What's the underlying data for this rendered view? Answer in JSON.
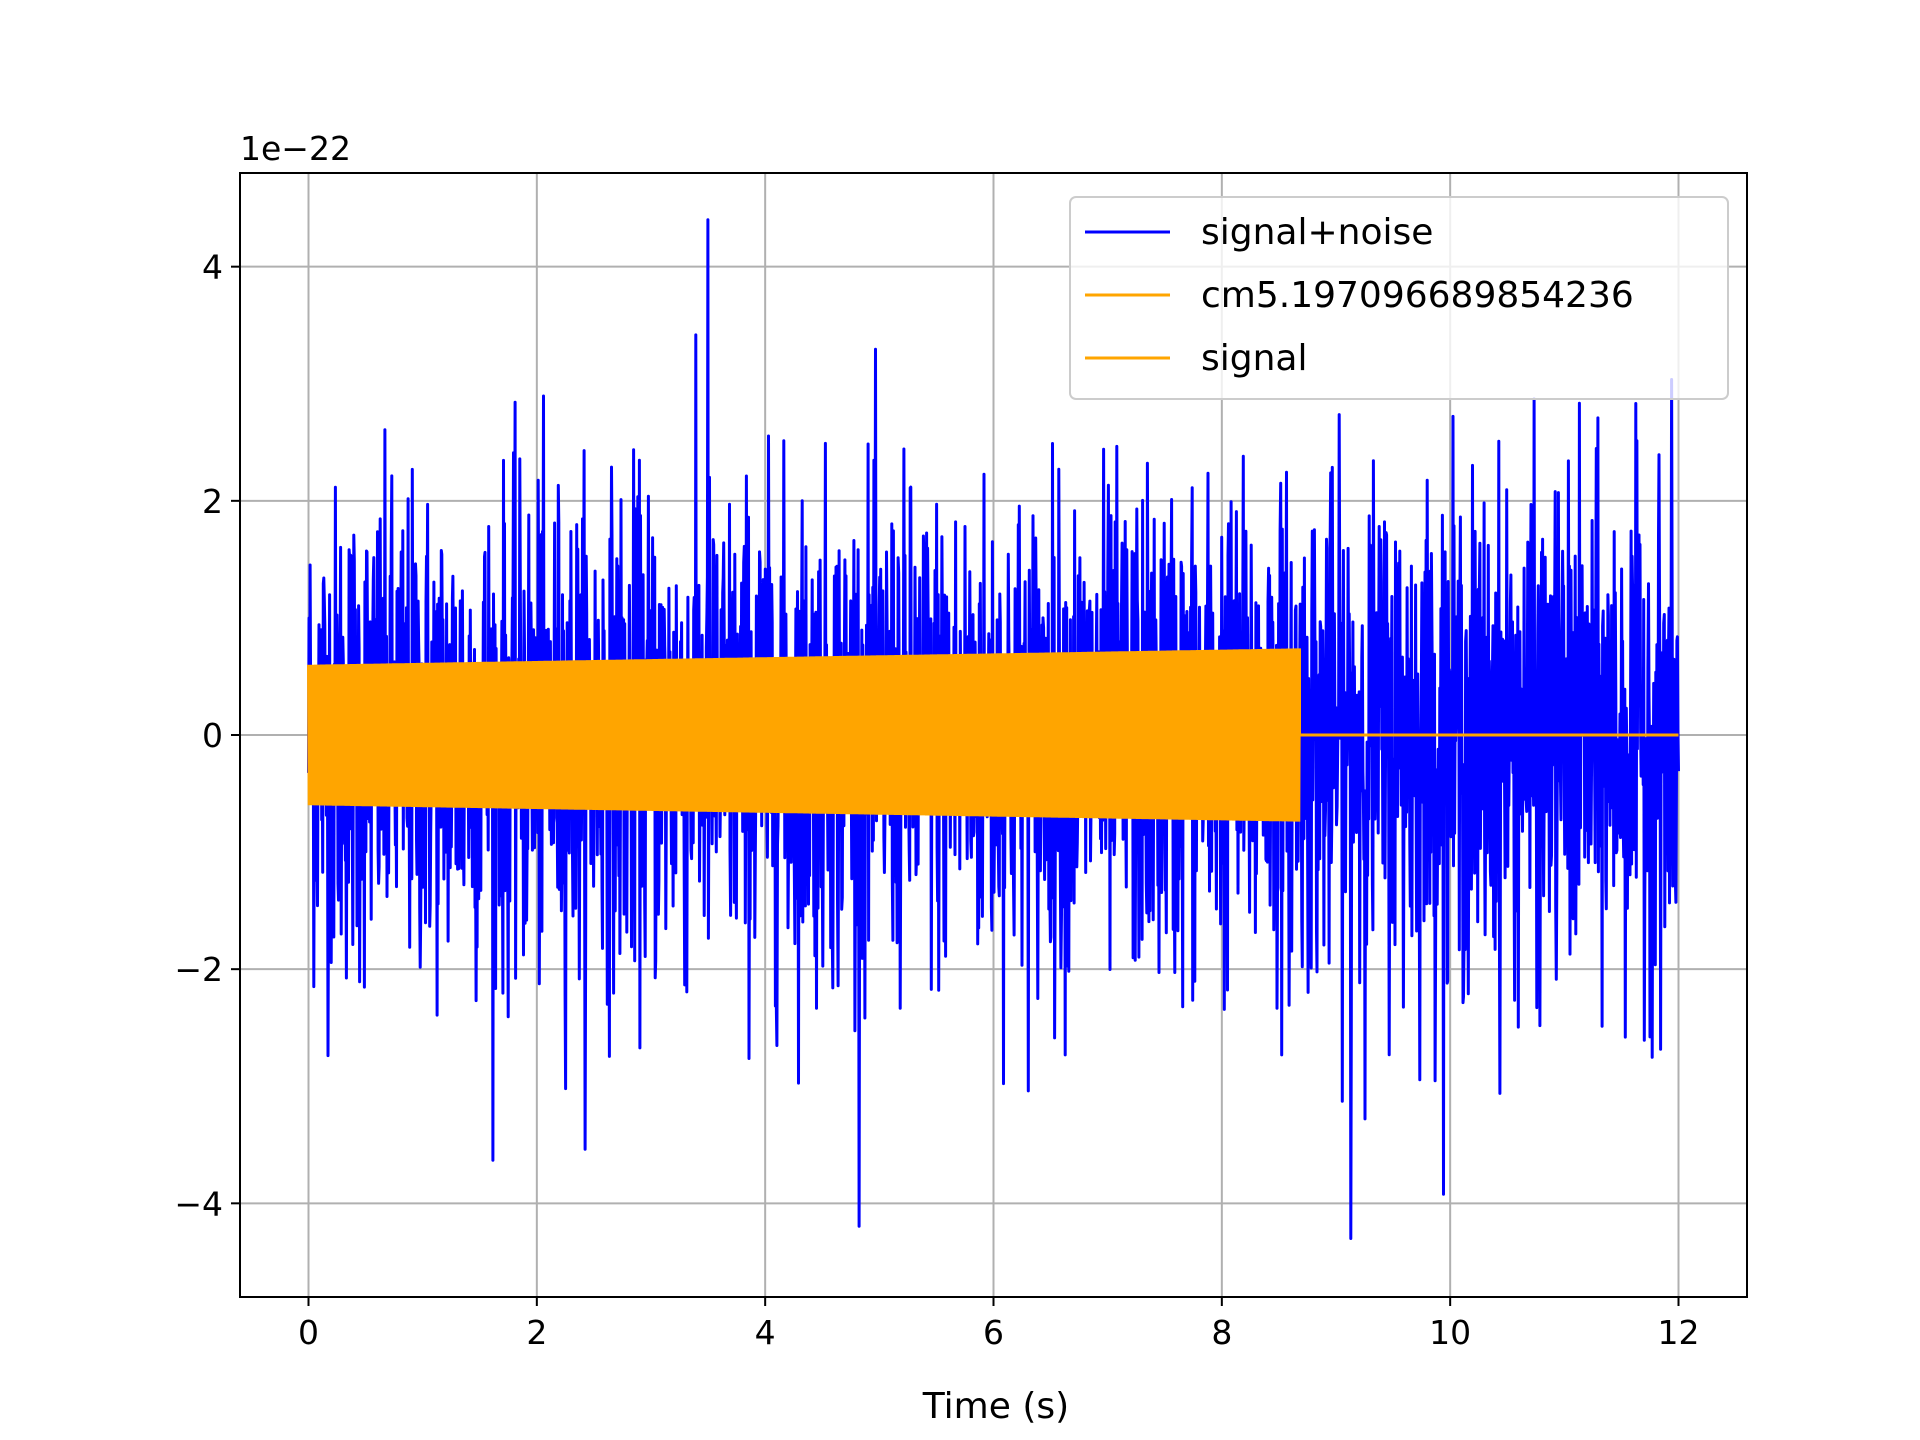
{
  "chart_data": {
    "type": "line",
    "xlabel": "Time (s)",
    "ylabel": "",
    "y_scale_text": "1e−22",
    "xlim": [
      -0.6,
      12.6
    ],
    "ylim": [
      -4.8,
      4.8
    ],
    "xticks": [
      0,
      2,
      4,
      6,
      8,
      10,
      12
    ],
    "xtick_labels": [
      "0",
      "2",
      "4",
      "6",
      "8",
      "10",
      "12"
    ],
    "yticks": [
      -4,
      -2,
      0,
      2,
      4
    ],
    "ytick_labels": [
      "−4",
      "−2",
      "0",
      "2",
      "4"
    ],
    "grid": true,
    "legend_position": "upper right",
    "series": [
      {
        "name": "signal+noise",
        "color": "#0000ff",
        "kind": "noise",
        "t_start": 0,
        "t_end": 12,
        "typical_range": [
          -2.4,
          2.4
        ],
        "extreme_max": 4.4,
        "extreme_min": -4.3
      },
      {
        "name": "cm5.197096689854236",
        "color": "#ffa500",
        "kind": "oscillation-envelope",
        "t_start": 0,
        "t_end": 8.68,
        "amplitude_start": 0.6,
        "amplitude_end": 0.74,
        "value_after_end": 0
      },
      {
        "name": "signal",
        "color": "#ffa500",
        "kind": "hidden-under-previous",
        "t_start": 0,
        "t_end": 12
      }
    ]
  }
}
